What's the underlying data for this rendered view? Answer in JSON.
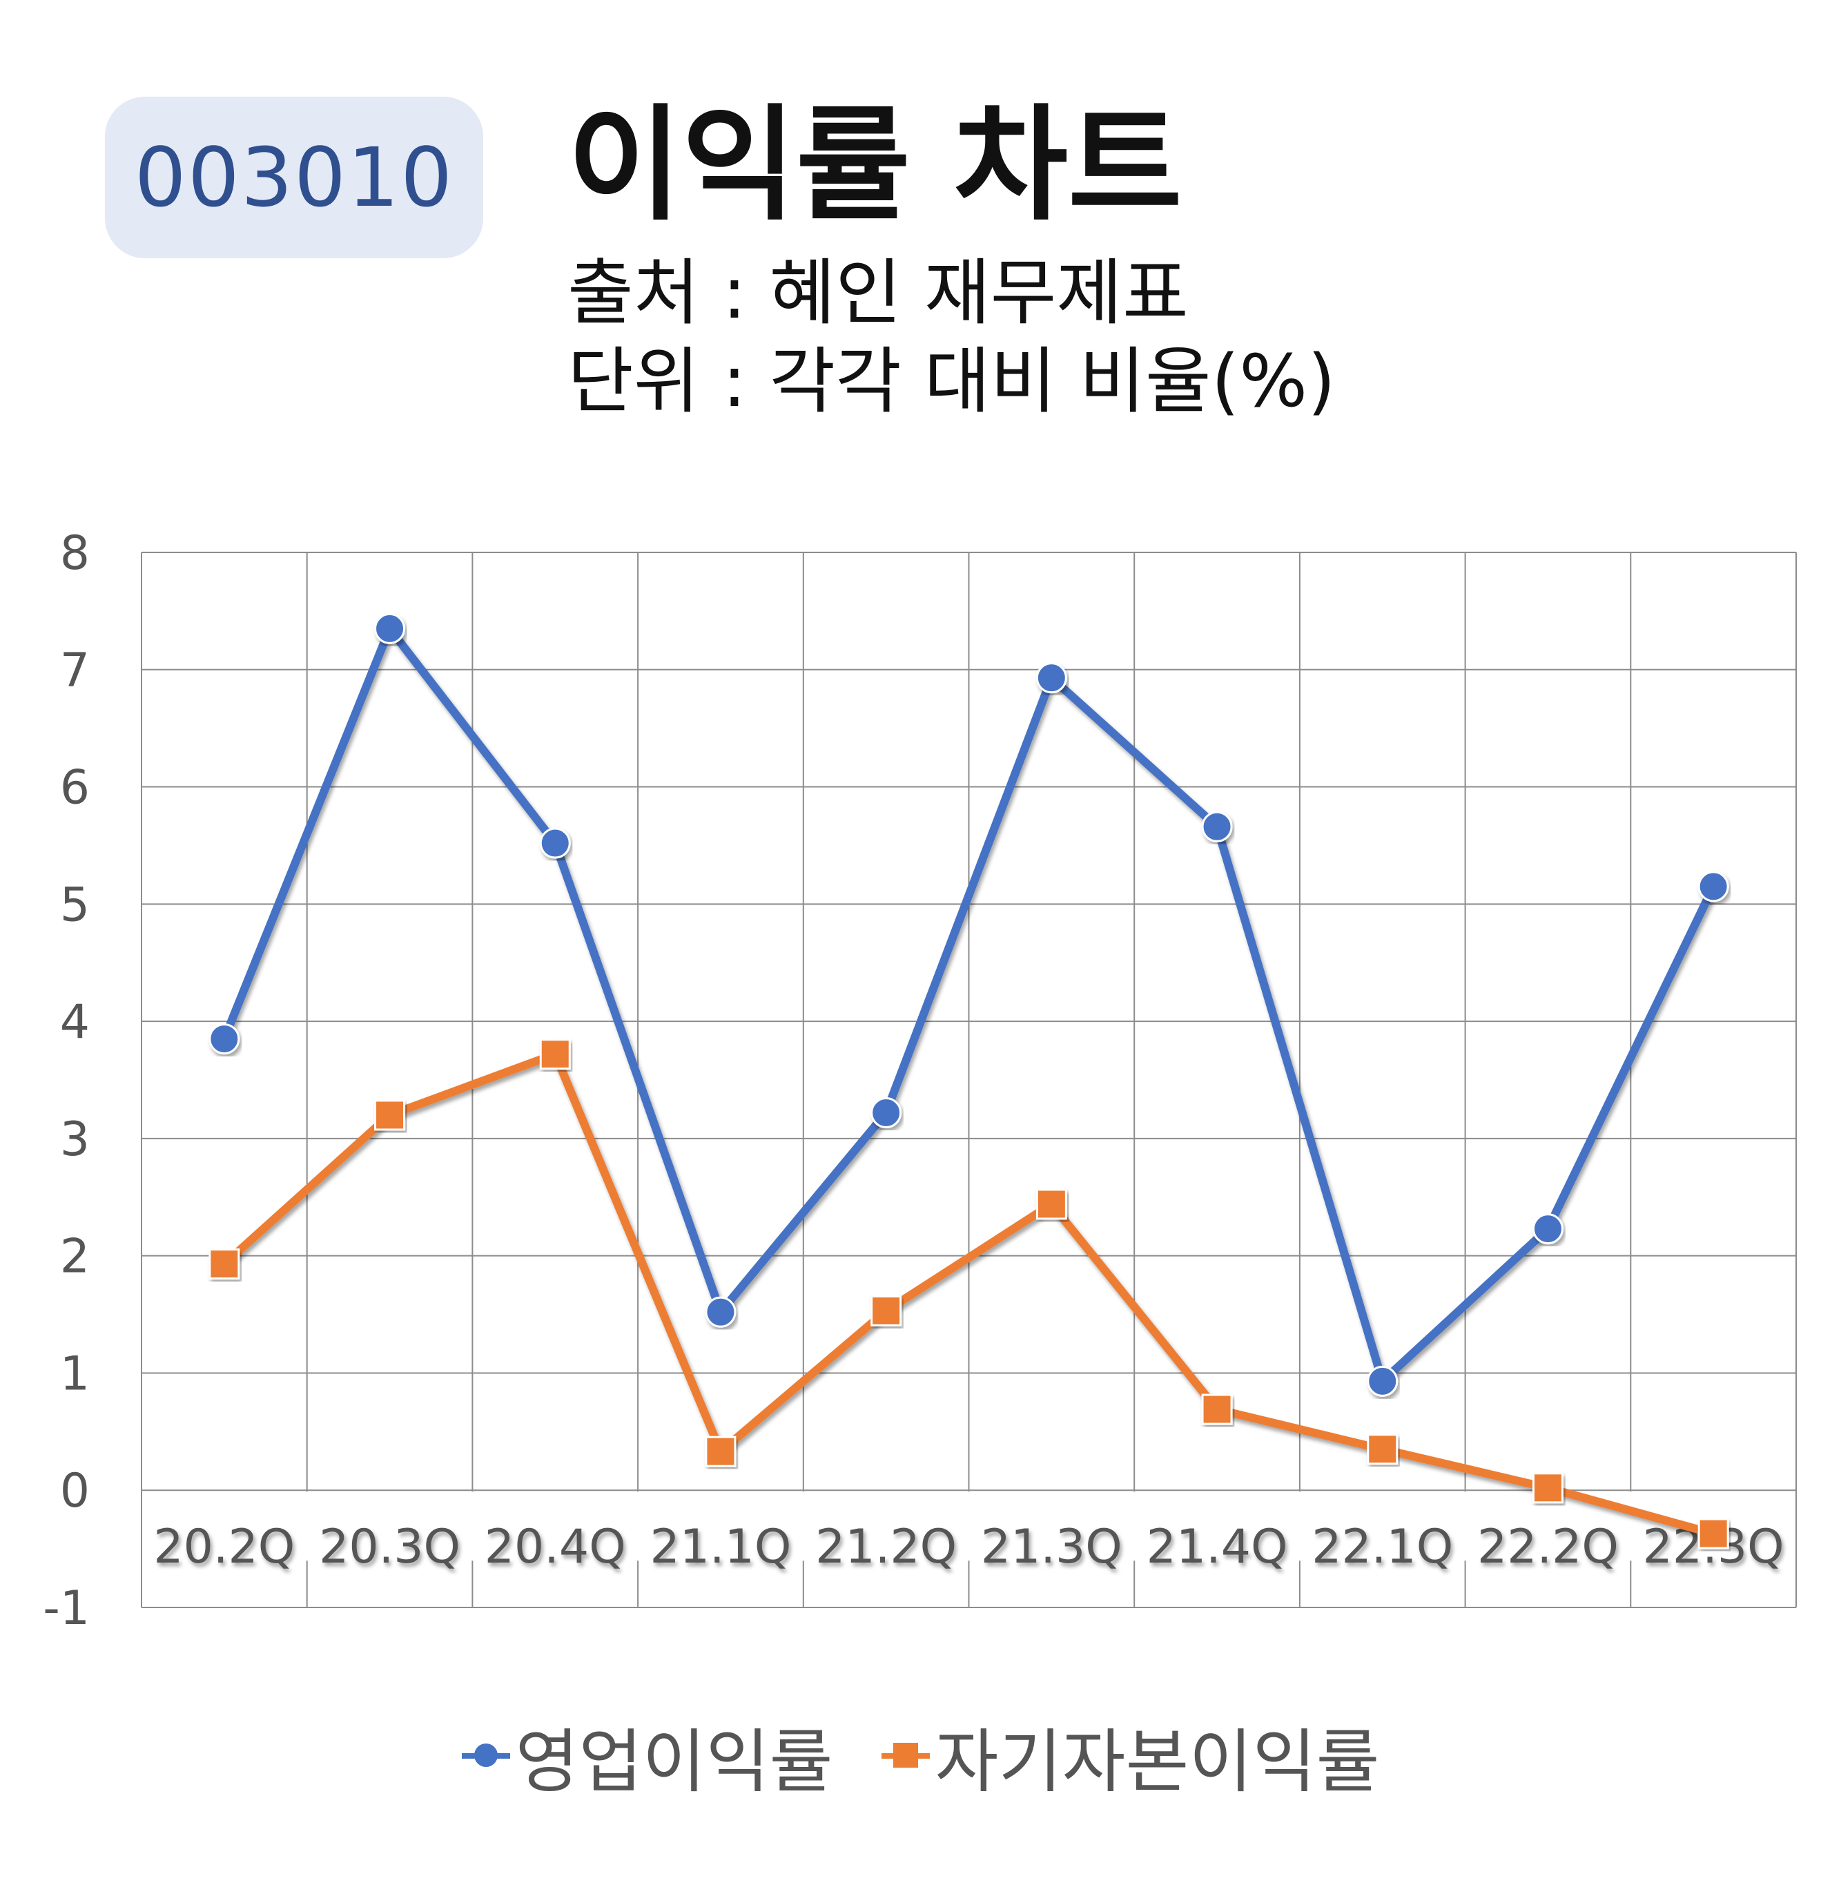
{
  "header": {
    "code": "003010",
    "title": "이익률 차트",
    "source_line": "출처 : 혜인 재무제표",
    "unit_line": "단위 : 각각 대비 비율(%)"
  },
  "chart_data": {
    "type": "line",
    "categories": [
      "20.2Q",
      "20.3Q",
      "20.4Q",
      "21.1Q",
      "21.2Q",
      "21.3Q",
      "21.4Q",
      "22.1Q",
      "22.2Q",
      "22.3Q"
    ],
    "ylim": [
      -1,
      8
    ],
    "yticks": [
      8,
      7,
      6,
      5,
      4,
      3,
      2,
      1,
      0,
      -1
    ],
    "grid": true,
    "legend_position": "bottom",
    "series": [
      {
        "name": "영업이익률",
        "color": "#4472c4",
        "marker": "circle",
        "values": [
          3.85,
          7.35,
          5.52,
          1.52,
          3.22,
          6.93,
          5.66,
          0.93,
          2.23,
          5.15
        ]
      },
      {
        "name": "자기자본이익률",
        "color": "#ed7d31",
        "marker": "square",
        "values": [
          1.93,
          3.2,
          3.72,
          0.33,
          1.53,
          2.44,
          0.69,
          0.35,
          0.02,
          -0.37
        ]
      }
    ]
  }
}
